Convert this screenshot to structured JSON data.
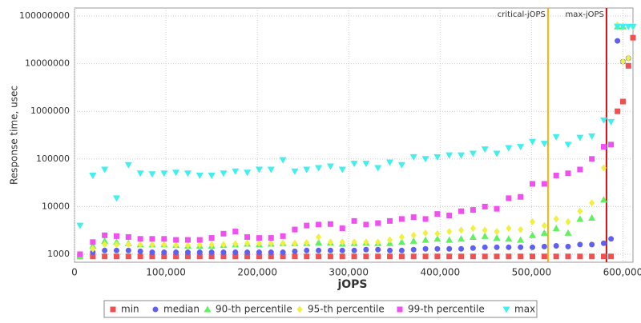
{
  "chart_data": {
    "type": "scatter",
    "x_label": "jOPS",
    "y_label": "Response time, usec",
    "log_y": true,
    "grid": true,
    "xlim": [
      0,
      611000
    ],
    "ylim": [
      680,
      147000000
    ],
    "xticks": [
      0,
      {
        "value": 100000,
        "label": "100,000"
      },
      {
        "value": 200000,
        "label": "200,000"
      },
      {
        "value": 300000,
        "label": "300,000"
      },
      {
        "value": 400000,
        "label": "400,000"
      },
      {
        "value": 500000,
        "label": "500,000"
      },
      {
        "value": 600000,
        "label": "600,000"
      }
    ],
    "yticks": [
      1000,
      10000,
      100000,
      1000000,
      10000000,
      100000000
    ],
    "vlines": [
      {
        "label": "critical-jOPS",
        "x": 518000,
        "color": "#ffb000"
      },
      {
        "label": "max-jOPS",
        "x": 582000,
        "color": "#d01010"
      }
    ],
    "x": [
      6000,
      20000,
      33000,
      46000,
      59000,
      72000,
      85000,
      98000,
      111000,
      124000,
      137000,
      150000,
      163000,
      176000,
      189000,
      202000,
      215000,
      228000,
      241000,
      254000,
      267000,
      280000,
      293000,
      306000,
      319000,
      332000,
      345000,
      358000,
      371000,
      384000,
      397000,
      410000,
      423000,
      436000,
      449000,
      462000,
      475000,
      488000,
      501000,
      514000,
      527000,
      540000,
      553000,
      566000,
      579000,
      587000,
      594000,
      600000,
      606000,
      611000
    ],
    "series": [
      {
        "name": "min",
        "color": "#f05050",
        "marker": "square",
        "values": [
          900,
          900,
          900,
          900,
          900,
          900,
          900,
          900,
          900,
          900,
          900,
          900,
          900,
          900,
          900,
          900,
          900,
          900,
          900,
          900,
          900,
          900,
          900,
          900,
          900,
          900,
          900,
          900,
          900,
          900,
          900,
          900,
          900,
          900,
          900,
          900,
          900,
          900,
          900,
          900,
          900,
          900,
          900,
          900,
          900,
          900,
          1000000,
          1600000,
          9000000,
          35000000
        ]
      },
      {
        "name": "median",
        "color": "#6060f0",
        "marker": "circle",
        "values": [
          900,
          1100,
          1200,
          1200,
          1200,
          1150,
          1100,
          1100,
          1100,
          1100,
          1100,
          1100,
          1100,
          1100,
          1100,
          1100,
          1100,
          1100,
          1150,
          1200,
          1200,
          1200,
          1200,
          1200,
          1250,
          1250,
          1200,
          1200,
          1250,
          1300,
          1300,
          1300,
          1300,
          1350,
          1400,
          1400,
          1400,
          1400,
          1400,
          1450,
          1500,
          1450,
          1600,
          1600,
          1700,
          2100,
          30000000,
          11000000,
          13000000,
          null
        ]
      },
      {
        "name": "90-th percentile",
        "color": "#60f060",
        "marker": "triangle",
        "values": [
          900,
          1500,
          1900,
          1800,
          1700,
          1600,
          1600,
          1600,
          1550,
          1500,
          1500,
          1500,
          1550,
          1600,
          1650,
          1600,
          1650,
          1700,
          1700,
          1700,
          1750,
          1750,
          1650,
          1700,
          1750,
          1700,
          1700,
          1800,
          1900,
          2000,
          2100,
          2000,
          2100,
          2300,
          2400,
          2200,
          2100,
          2000,
          2500,
          2800,
          3500,
          2800,
          5500,
          5800,
          14000,
          null,
          60000000,
          60000000,
          null,
          null
        ]
      },
      {
        "name": "95-th percentile",
        "color": "#f0f040",
        "marker": "diamond",
        "values": [
          1000,
          1300,
          1600,
          1600,
          1600,
          1600,
          1600,
          1600,
          1550,
          1550,
          1600,
          1600,
          1600,
          1650,
          1700,
          1700,
          1700,
          1700,
          1700,
          1750,
          2300,
          1800,
          1800,
          1800,
          1800,
          1800,
          2000,
          2300,
          2500,
          2800,
          2700,
          3000,
          3200,
          3500,
          3200,
          3000,
          3500,
          3300,
          4800,
          4000,
          5500,
          4800,
          8000,
          12000,
          65000,
          null,
          65000000,
          11000000,
          13000000,
          60000000
        ]
      },
      {
        "name": "99-th percentile",
        "color": "#f050f0",
        "marker": "square",
        "values": [
          1000,
          1800,
          2500,
          2400,
          2300,
          2100,
          2100,
          2100,
          2000,
          2000,
          2000,
          2200,
          2700,
          3000,
          2300,
          2200,
          2200,
          2400,
          3300,
          4000,
          4200,
          4300,
          3500,
          5000,
          4200,
          4500,
          5000,
          5500,
          6000,
          5500,
          7000,
          6500,
          8000,
          8500,
          10000,
          9000,
          15000,
          16000,
          30000,
          30000,
          45000,
          50000,
          60000,
          100000,
          180000,
          200000,
          null,
          null,
          null,
          null
        ]
      },
      {
        "name": "max",
        "color": "#40f0f0",
        "marker": "triangle-down",
        "values": [
          4000,
          45000,
          60000,
          15000,
          75000,
          50000,
          48000,
          50000,
          52000,
          50000,
          45000,
          45000,
          50000,
          55000,
          52000,
          60000,
          60000,
          95000,
          55000,
          60000,
          65000,
          70000,
          60000,
          80000,
          80000,
          65000,
          85000,
          75000,
          110000,
          100000,
          110000,
          120000,
          120000,
          130000,
          160000,
          130000,
          170000,
          180000,
          230000,
          210000,
          290000,
          200000,
          280000,
          300000,
          650000,
          600000,
          60000000,
          60000000,
          60000000,
          60000000
        ]
      }
    ]
  }
}
